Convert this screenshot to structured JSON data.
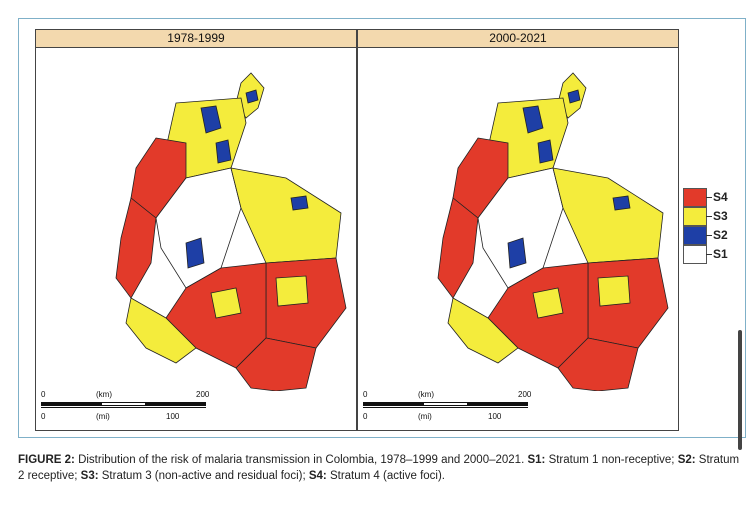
{
  "panels": [
    {
      "title": "1978-1999"
    },
    {
      "title": "2000-2021"
    }
  ],
  "scale": {
    "km_unit": "(km)",
    "mi_unit": "(mi)",
    "zero_top": "0",
    "zero_bottom": "0",
    "km_max": "200",
    "mi_max": "100"
  },
  "legend": {
    "items": [
      {
        "label": "S4",
        "color": "#e23a2a"
      },
      {
        "label": "S3",
        "color": "#f4ec3c"
      },
      {
        "label": "S2",
        "color": "#1e3fa6"
      },
      {
        "label": "S1",
        "color": "#ffffff"
      }
    ]
  },
  "caption": {
    "figure_label": "FIGURE 2:",
    "intro": " Distribution of the risk of malaria transmission in Colombia, 1978–1999 and 2000–2021. ",
    "s1_label": "S1:",
    "s1_text": " Stratum 1 non-receptive; ",
    "s2_label": "S2:",
    "s2_text": " Stratum 2 receptive; ",
    "s3_label": "S3:",
    "s3_text": " Stratum 3 (non-active and residual foci); ",
    "s4_label": "S4:",
    "s4_text": " Stratum 4 (active foci)."
  }
}
